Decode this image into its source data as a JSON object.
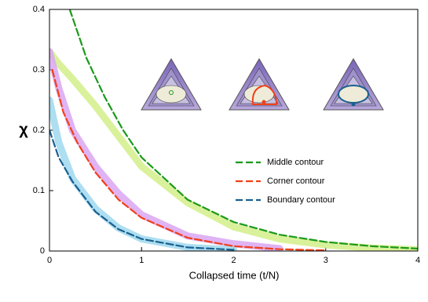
{
  "chart_data": {
    "type": "line",
    "xlabel": "Collapsed time (t/N)",
    "ylabel": "χ",
    "xlim": [
      0,
      4
    ],
    "ylim": [
      0,
      0.4
    ],
    "xticks": [
      0,
      1,
      2,
      3,
      4
    ],
    "yticks": [
      0,
      0.1,
      0.2,
      0.3,
      0.4
    ],
    "series": [
      {
        "color": "#d4ef8a",
        "x": [
          0,
          0.1,
          0.25,
          0.5,
          0.75,
          1,
          1.5,
          2,
          2.5,
          3,
          3.5,
          4
        ],
        "values": [
          0.33,
          0.31,
          0.285,
          0.24,
          0.19,
          0.14,
          0.08,
          0.04,
          0.02,
          0.01,
          0.005,
          0.002
        ]
      },
      {
        "color": "#d9a6f2",
        "x": [
          0,
          0.1,
          0.25,
          0.5,
          0.75,
          1,
          1.5,
          2,
          2.5
        ],
        "values": [
          0.33,
          0.27,
          0.2,
          0.14,
          0.095,
          0.06,
          0.025,
          0.012,
          0.004
        ]
      },
      {
        "color": "#9fd8ef",
        "x": [
          0,
          0.1,
          0.25,
          0.5,
          0.75,
          1,
          1.5,
          2
        ],
        "values": [
          0.25,
          0.18,
          0.12,
          0.07,
          0.038,
          0.02,
          0.006,
          0.002
        ]
      },
      {
        "name": "Middle contour",
        "color": "#1a9a1a",
        "dashed": true,
        "x": [
          0.22,
          0.4,
          0.6,
          0.8,
          1,
          1.5,
          2,
          2.5,
          3,
          3.5,
          4
        ],
        "values": [
          0.4,
          0.32,
          0.255,
          0.2,
          0.155,
          0.085,
          0.048,
          0.027,
          0.015,
          0.008,
          0.004
        ]
      },
      {
        "name": "Corner contour",
        "color": "#f0401a",
        "dashed": true,
        "x": [
          0.03,
          0.15,
          0.3,
          0.5,
          0.75,
          1,
          1.5,
          2,
          2.5,
          3
        ],
        "values": [
          0.3,
          0.23,
          0.18,
          0.13,
          0.085,
          0.055,
          0.022,
          0.008,
          0.003,
          0.001
        ]
      },
      {
        "name": "Boundary contour",
        "color": "#1a5f8f",
        "dashed": true,
        "x": [
          0,
          0.1,
          0.25,
          0.5,
          0.75,
          1,
          1.5,
          2
        ],
        "values": [
          0.2,
          0.155,
          0.115,
          0.065,
          0.036,
          0.02,
          0.006,
          0.002
        ]
      }
    ]
  }
}
